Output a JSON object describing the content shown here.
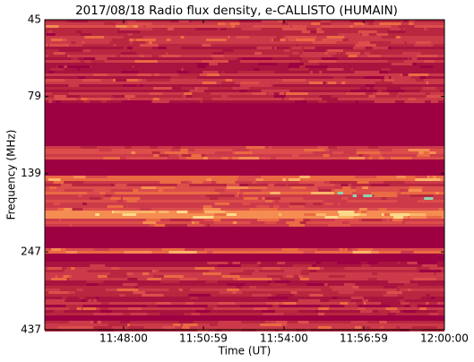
{
  "chart_data": {
    "type": "spectrogram",
    "title": "2017/08/18  Radio flux density, e-CALLISTO (HUMAIN)",
    "xlabel": "Time (UT)",
    "ylabel": "Frequency (MHz)",
    "xlim": [
      42303,
      43200
    ],
    "xticks": [
      {
        "value": 42480,
        "label": "11:48:00"
      },
      {
        "value": 42659,
        "label": "11:50:59"
      },
      {
        "value": 42840,
        "label": "11:54:00"
      },
      {
        "value": 43019,
        "label": "11:56:59"
      },
      {
        "value": 43200,
        "label": "12:00:00"
      }
    ],
    "ylim": [
      45,
      437
    ],
    "yticks": [
      45,
      79,
      139,
      247,
      437
    ],
    "ylog": true,
    "yinverted": true
  }
}
